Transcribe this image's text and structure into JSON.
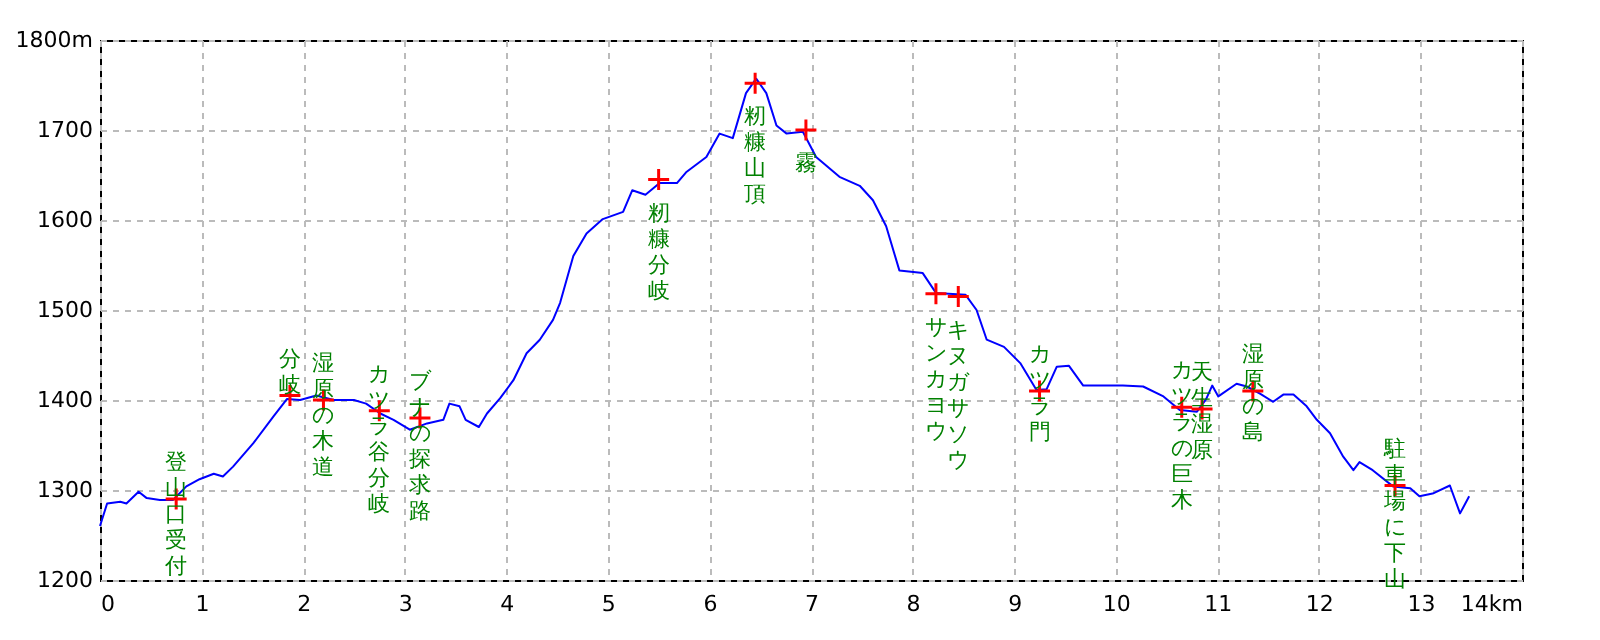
{
  "chart_data": {
    "type": "line",
    "xlim": [
      0,
      14
    ],
    "ylim": [
      1200,
      1800
    ],
    "xticks": [
      0,
      1,
      2,
      3,
      4,
      5,
      6,
      7,
      8,
      9,
      10,
      11,
      12,
      13,
      {
        "value": 14,
        "label": "14km"
      }
    ],
    "yticks": [
      1200,
      1300,
      1400,
      1500,
      1600,
      1700,
      {
        "value": 1800,
        "label": "1800m"
      }
    ],
    "grid": true,
    "series": [
      {
        "color": "#0000ff",
        "marker": "none",
        "line_style": "solid",
        "x": [
          0,
          0.07,
          0.2,
          0.26,
          0.38,
          0.46,
          0.59,
          0.72,
          0.85,
          0.98,
          1.12,
          1.21,
          1.31,
          1.51,
          1.71,
          1.84,
          1.97,
          2.13,
          2.3,
          2.5,
          2.62,
          2.76,
          2.89,
          3.05,
          3.22,
          3.38,
          3.44,
          3.54,
          3.6,
          3.73,
          3.81,
          3.94,
          4.07,
          4.2,
          4.33,
          4.46,
          4.53,
          4.66,
          4.79,
          4.95,
          5.15,
          5.24,
          5.37,
          5.51,
          5.68,
          5.77,
          5.97,
          6.1,
          6.23,
          6.36,
          6.46,
          6.56,
          6.66,
          6.76,
          6.92,
          7.05,
          7.28,
          7.48,
          7.61,
          7.74,
          7.87,
          8.1,
          8.23,
          8.52,
          8.63,
          8.73,
          8.9,
          9.06,
          9.22,
          9.32,
          9.42,
          9.54,
          9.68,
          10.07,
          10.27,
          10.47,
          10.63,
          10.8,
          10.89,
          10.95,
          11.01,
          11.19,
          11.29,
          11.42,
          11.55,
          11.65,
          11.75,
          11.88,
          11.98,
          12.11,
          12.24,
          12.34,
          12.4,
          12.53,
          12.73,
          12.9,
          12.99,
          13.12,
          13.29,
          13.39,
          13.48
        ],
        "values": [
          1260,
          1285,
          1287,
          1285,
          1298,
          1291,
          1289,
          1289,
          1304,
          1312,
          1318,
          1315,
          1326,
          1352,
          1382,
          1401,
          1400,
          1405,
          1400,
          1400,
          1396,
          1385,
          1378,
          1367,
          1374,
          1378,
          1396,
          1393,
          1378,
          1370,
          1385,
          1402,
          1422,
          1452,
          1467,
          1489,
          1508,
          1560,
          1585,
          1601,
          1609,
          1633,
          1628,
          1641,
          1641,
          1653,
          1670,
          1696,
          1691,
          1741,
          1757,
          1741,
          1705,
          1696,
          1698,
          1670,
          1648,
          1638,
          1622,
          1593,
          1544,
          1541,
          1519,
          1517,
          1500,
          1467,
          1459,
          1441,
          1411,
          1412,
          1437,
          1438,
          1416,
          1416,
          1415,
          1404,
          1389,
          1387,
          1401,
          1416,
          1404,
          1418,
          1415,
          1407,
          1398,
          1406,
          1406,
          1393,
          1378,
          1363,
          1337,
          1322,
          1331,
          1322,
          1304,
          1302,
          1293,
          1296,
          1305,
          1274,
          1293
        ]
      },
      {
        "type": "scatter",
        "color": "#ff0000",
        "marker": "cross",
        "x": [
          0.75,
          1.87,
          2.2,
          2.75,
          3.15,
          5.5,
          6.45,
          6.95,
          8.23,
          8.45,
          9.25,
          10.65,
          10.85,
          11.35,
          12.75
        ],
        "values": [
          1290,
          1405,
          1400,
          1388,
          1380,
          1645,
          1752,
          1700,
          1518,
          1515,
          1410,
          1392,
          1390,
          1410,
          1305
        ],
        "value_labels": [
          "登山口受付",
          "分岐",
          "湿原の木道",
          "カツラ谷分岐",
          "ブナの探求路",
          "籾糠分岐",
          "籾糠山頂",
          "霧",
          "サンカヨウ",
          "キヌガサソウ",
          "カツラ門",
          "カツラの巨木",
          "天生湿原",
          "湿原の島",
          "駐車場に下山"
        ]
      }
    ]
  }
}
